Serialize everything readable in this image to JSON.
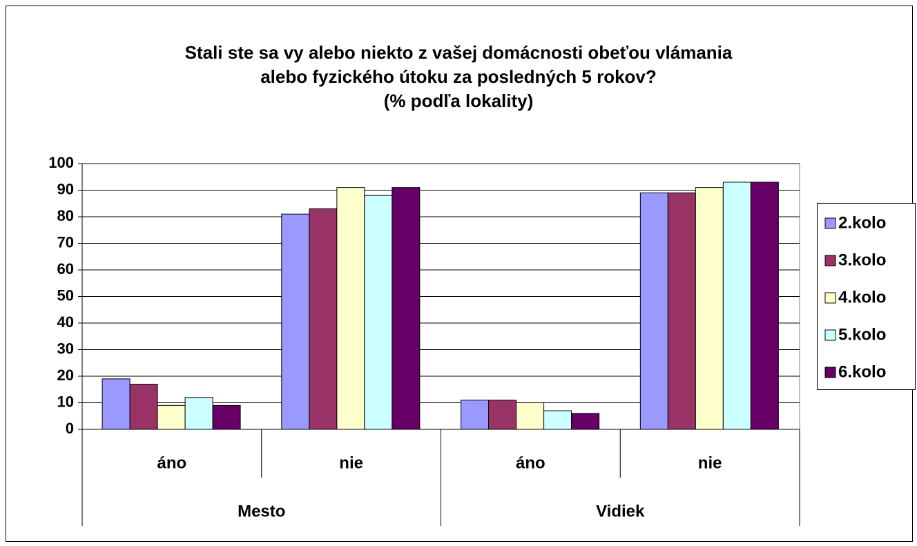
{
  "chart_data": {
    "type": "bar",
    "title": [
      "Stali ste sa vy alebo niekto z vašej domácnosti obeťou vlámania",
      "alebo fyzického útoku za posledných 5 rokov?"
    ],
    "subtitle": "(% podľa lokality)",
    "groups": [
      {
        "name": "Mesto",
        "categories": [
          "áno",
          "nie"
        ]
      },
      {
        "name": "Vidiek",
        "categories": [
          "áno",
          "nie"
        ]
      }
    ],
    "series": [
      {
        "name": "2.kolo",
        "color": "#9999ff",
        "values": [
          19,
          81,
          11,
          89
        ]
      },
      {
        "name": "3.kolo",
        "color": "#993366",
        "values": [
          17,
          83,
          11,
          89
        ]
      },
      {
        "name": "4.kolo",
        "color": "#ffffcc",
        "values": [
          9,
          91,
          10,
          91
        ]
      },
      {
        "name": "5.kolo",
        "color": "#ccffff",
        "values": [
          12,
          88,
          7,
          93
        ]
      },
      {
        "name": "6.kolo",
        "color": "#660066",
        "values": [
          9,
          91,
          6,
          93
        ]
      }
    ],
    "ylim": [
      0,
      100
    ],
    "yticks": [
      0,
      10,
      20,
      30,
      40,
      50,
      60,
      70,
      80,
      90,
      100
    ],
    "grid": true,
    "legend": "right"
  }
}
